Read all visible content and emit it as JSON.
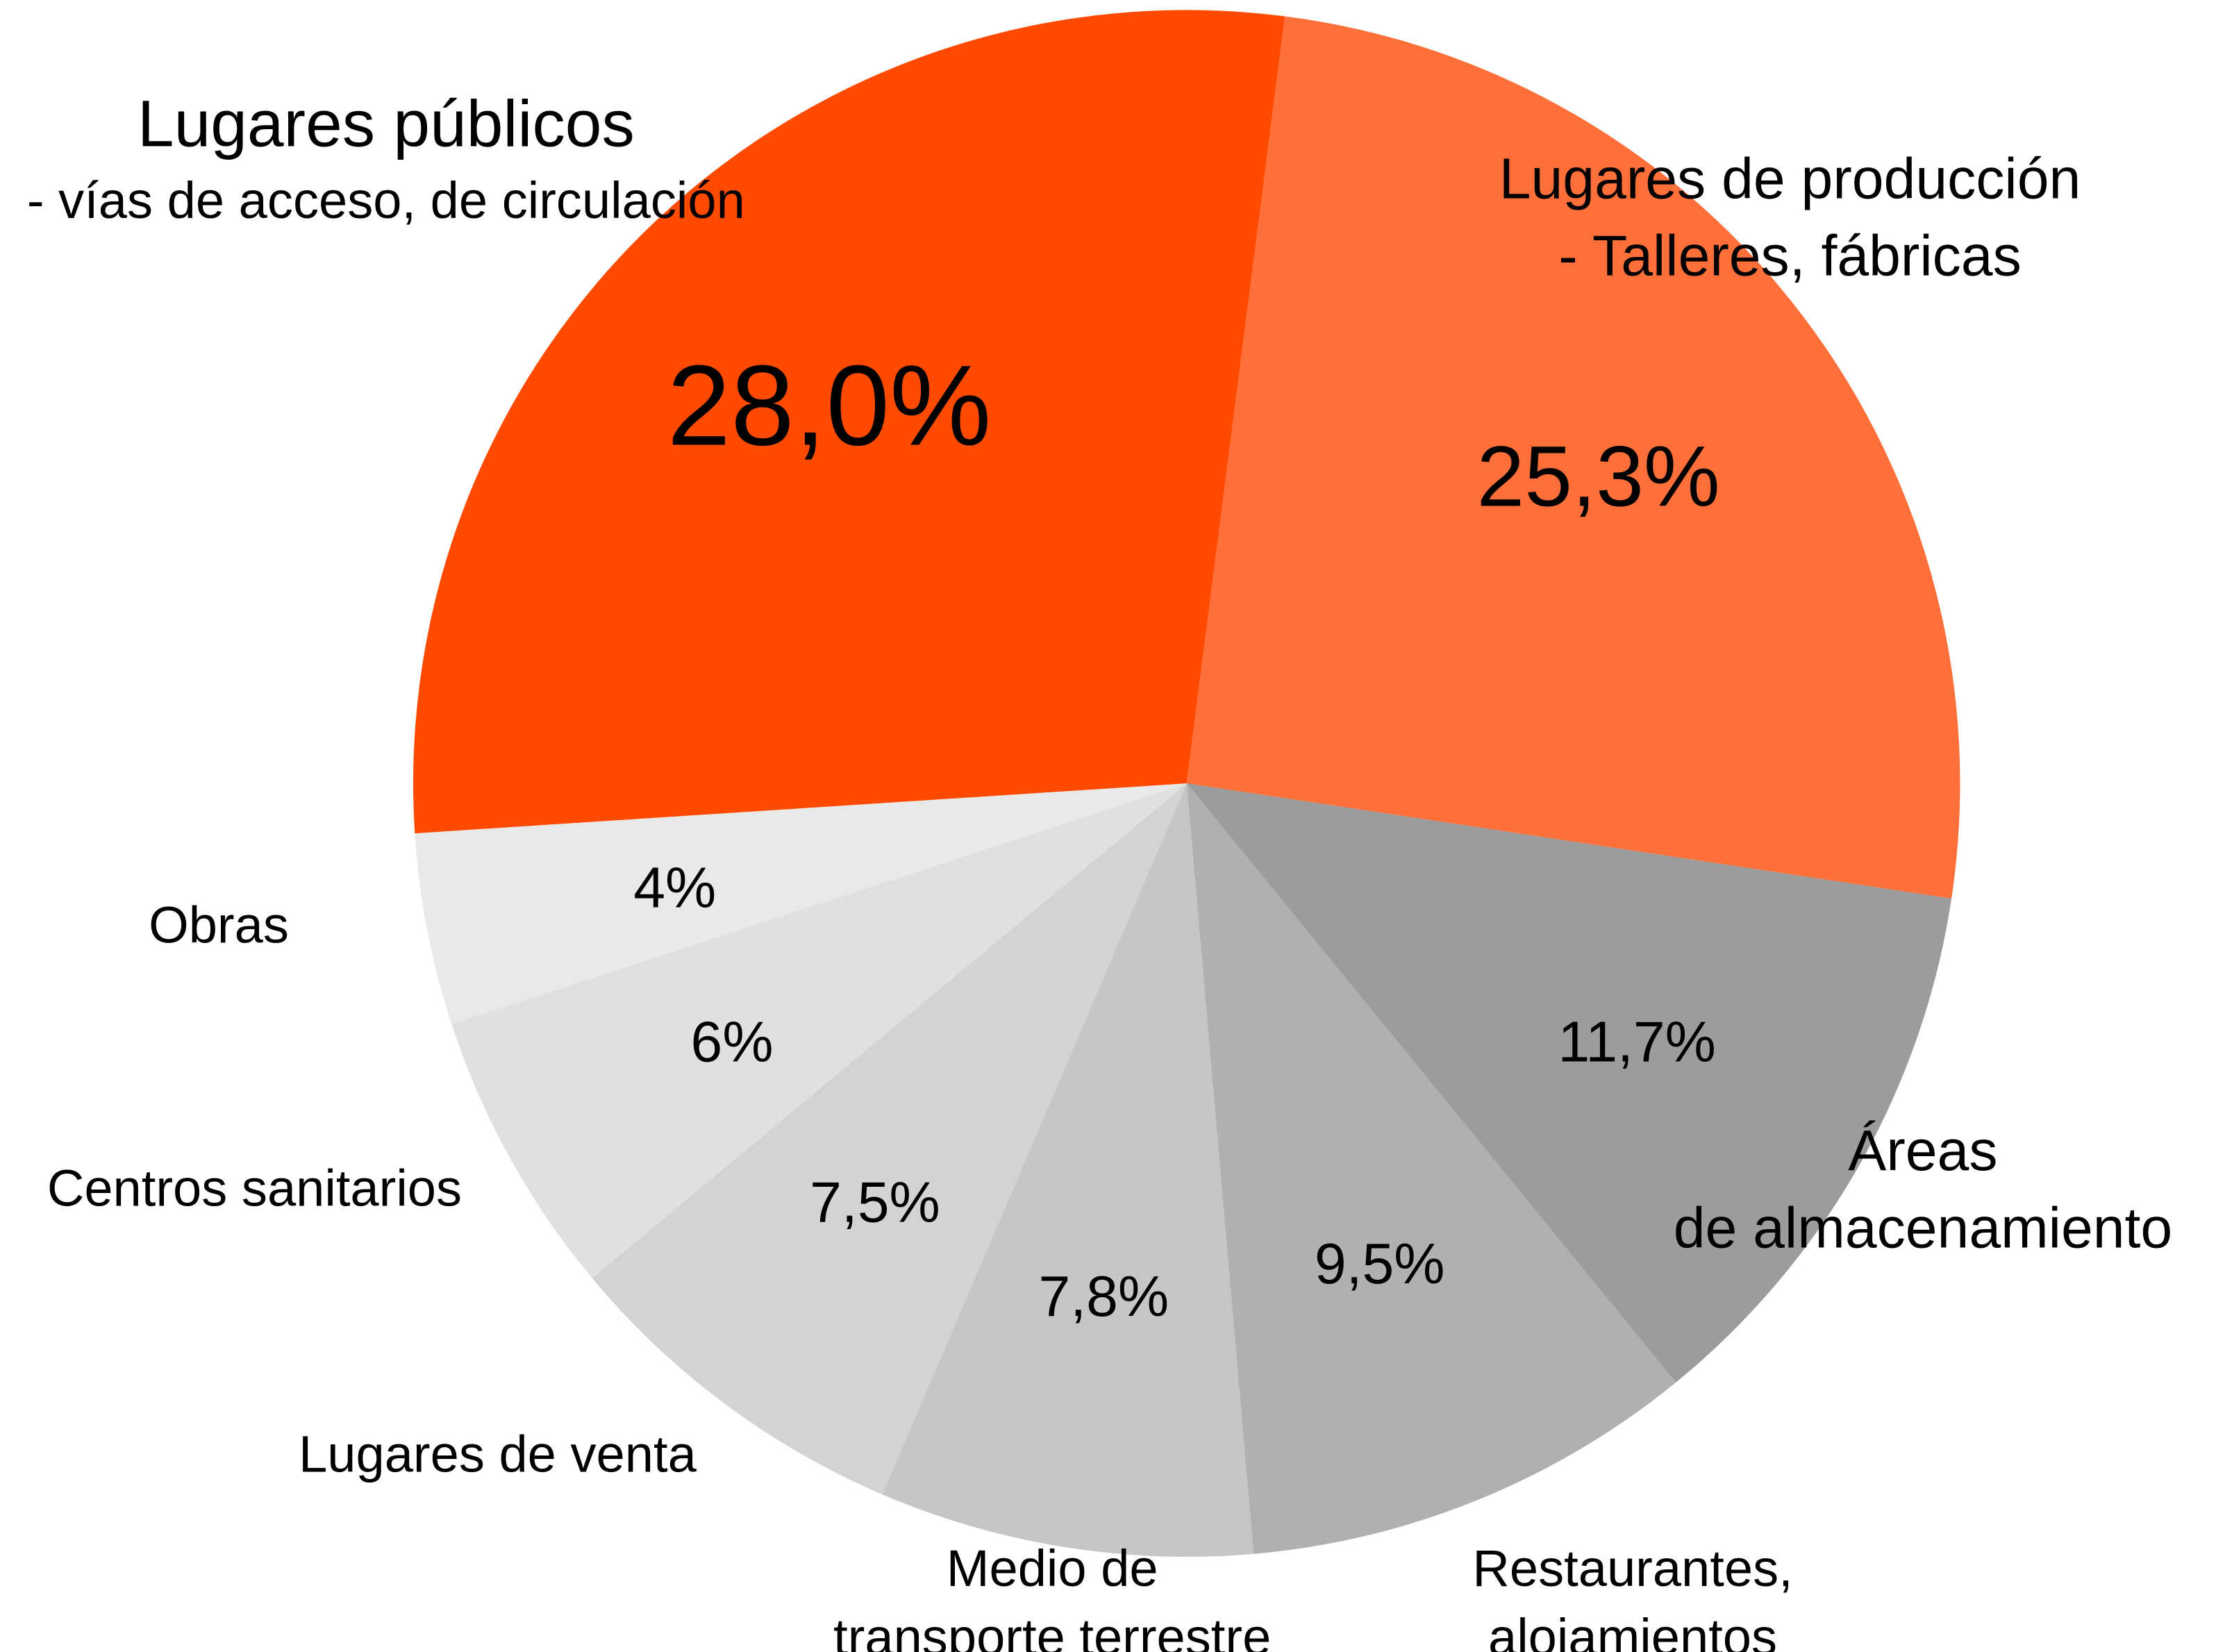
{
  "chart_data": {
    "type": "pie",
    "categories": [
      [
        "Lugares de producción",
        "- Talleres, fábricas"
      ],
      [
        "Áreas",
        "de almacenamiento"
      ],
      [
        "Restaurantes,",
        "alojamientos"
      ],
      [
        "Medio de",
        "transporte terrestre"
      ],
      [
        "Lugares de venta"
      ],
      [
        "Centros sanitarios"
      ],
      [
        "Obras"
      ],
      [
        "Lugares públicos",
        "- vías de acceso, de circulación"
      ]
    ],
    "values": [
      25.3,
      11.7,
      9.5,
      7.8,
      7.5,
      6,
      4,
      28.0
    ],
    "value_labels": [
      "25,3%",
      "11,7%",
      "9,5%",
      "7,8%",
      "7,5%",
      "6%",
      "4%",
      "28,0%"
    ],
    "colors": [
      "#ff6f3a",
      "#9c9c9c",
      "#b0b0b0",
      "#c6c6c6",
      "#d3d3d3",
      "#e0e0e0",
      "#e9e9e9",
      "#ff4a00"
    ],
    "label_colors": [
      "#000000",
      "#000000",
      "#000000",
      "#000000",
      "#000000",
      "#000000",
      "#000000",
      "#ffffff"
    ]
  }
}
